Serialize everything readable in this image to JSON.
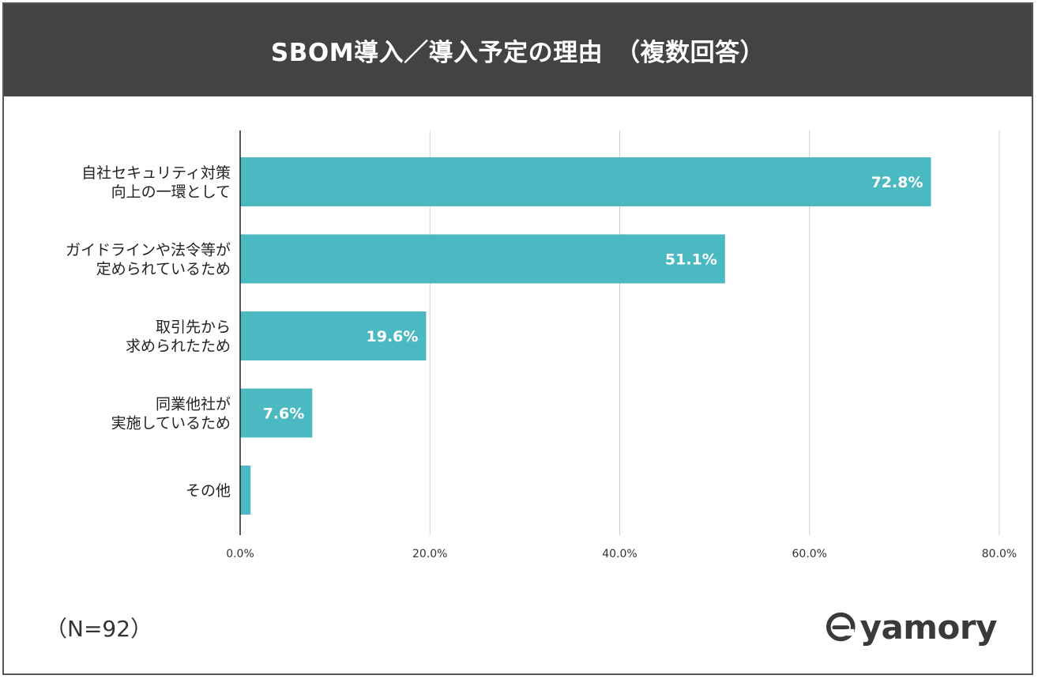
{
  "title": "SBOM導入／導入予定の理由　（複数回答）",
  "note": "（N=92）",
  "brand": {
    "name": "yamory",
    "text_color": "#3a3a3a",
    "icon": "yamory-logo-icon"
  },
  "colors": {
    "bar": "#4ab9c2",
    "grid": "#d0d0d0",
    "axis": "#222222",
    "title_bg": "#434343"
  },
  "chart_data": {
    "type": "bar",
    "orientation": "horizontal",
    "title": "SBOM導入／導入予定の理由　（複数回答）",
    "categories": [
      [
        "自社セキュリティ対策",
        "向上の一環として"
      ],
      [
        "ガイドラインや法令等が",
        "定められているため"
      ],
      [
        "取引先から",
        "求められたため"
      ],
      [
        "同業他社が",
        "実施しているため"
      ],
      [
        "その他"
      ]
    ],
    "values": [
      72.8,
      51.1,
      19.6,
      7.6,
      1.1
    ],
    "value_labels": [
      "72.8%",
      "51.1%",
      "19.6%",
      "7.6%",
      ""
    ],
    "xlim": [
      0,
      80
    ],
    "xticks": [
      0,
      20,
      40,
      60,
      80
    ],
    "xtick_labels": [
      "0.0%",
      "20.0%",
      "40.0%",
      "60.0%",
      "80.0%"
    ],
    "grid": true,
    "legend": "none"
  }
}
